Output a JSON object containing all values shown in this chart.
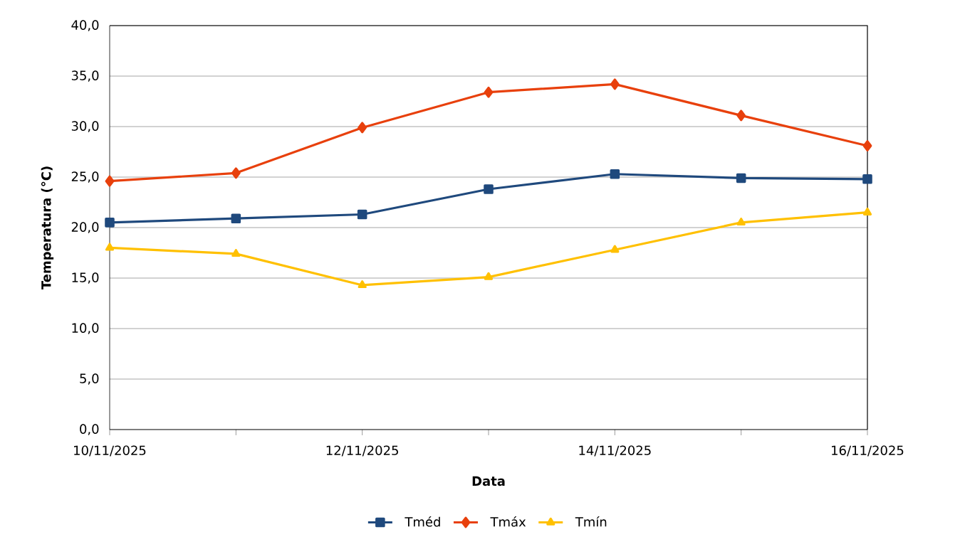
{
  "chart_data": {
    "type": "line",
    "xlabel": "Data",
    "ylabel": "Temperatura (°C)",
    "x": [
      "2025-11-10",
      "2025-11-11",
      "2025-11-12",
      "2025-11-13",
      "2025-11-14",
      "2025-11-15",
      "2025-11-16"
    ],
    "series": [
      {
        "name": "Tméd",
        "color": "#1f497d",
        "marker": "square",
        "values": [
          20.5,
          20.9,
          21.3,
          23.8,
          25.3,
          24.9,
          24.8
        ]
      },
      {
        "name": "Tmáx",
        "color": "#e8400c",
        "marker": "diamond",
        "values": [
          24.6,
          25.4,
          29.9,
          33.4,
          34.2,
          31.1,
          28.1
        ]
      },
      {
        "name": "Tmín",
        "color": "#ffc000",
        "marker": "triangle",
        "values": [
          18.0,
          17.4,
          14.3,
          15.1,
          17.8,
          20.5,
          21.5
        ]
      }
    ],
    "xlim": [
      "2025-11-10",
      "2025-11-16"
    ],
    "xticks": [
      {
        "value": "2025-11-10",
        "label": "10/11/2025"
      },
      {
        "value": "2025-11-11",
        "label": null
      },
      {
        "value": "2025-11-12",
        "label": "12/11/2025"
      },
      {
        "value": "2025-11-13",
        "label": null
      },
      {
        "value": "2025-11-14",
        "label": "14/11/2025"
      },
      {
        "value": "2025-11-15",
        "label": null
      },
      {
        "value": "2025-11-16",
        "label": "16/11/2025"
      }
    ],
    "ylim": [
      0,
      40
    ],
    "yticks": [
      {
        "value": 0,
        "label": "0,0"
      },
      {
        "value": 5,
        "label": "5,0"
      },
      {
        "value": 10,
        "label": "10,0"
      },
      {
        "value": 15,
        "label": "15,0"
      },
      {
        "value": 20,
        "label": "20,0"
      },
      {
        "value": 25,
        "label": "25,0"
      },
      {
        "value": 30,
        "label": "30,0"
      },
      {
        "value": 35,
        "label": "35,0"
      },
      {
        "value": 40,
        "label": "40,0"
      }
    ],
    "grid": "y",
    "legend": "bottom",
    "line_style": "solid"
  }
}
